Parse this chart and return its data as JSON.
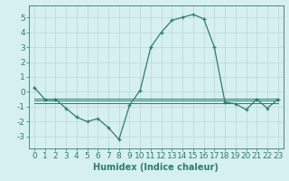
{
  "xlabel": "Humidex (Indice chaleur)",
  "x": [
    0,
    1,
    2,
    3,
    4,
    5,
    6,
    7,
    8,
    9,
    10,
    11,
    12,
    13,
    14,
    15,
    16,
    17,
    18,
    19,
    20,
    21,
    22,
    23
  ],
  "main_line": [
    0.3,
    -0.5,
    -0.5,
    -1.1,
    -1.7,
    -2.0,
    -1.8,
    -2.4,
    -3.2,
    -0.9,
    0.1,
    3.0,
    4.0,
    4.8,
    5.0,
    5.2,
    4.9,
    3.0,
    -0.7,
    -0.8,
    -1.2,
    -0.5,
    -1.1,
    -0.5
  ],
  "flat_line1": [
    -0.45,
    -0.45,
    -0.45,
    -0.45,
    -0.45,
    -0.45,
    -0.45,
    -0.45,
    -0.45,
    -0.45,
    -0.45,
    -0.45,
    -0.45,
    -0.45,
    -0.45,
    -0.45,
    -0.45,
    -0.45,
    -0.45,
    -0.45,
    -0.45,
    -0.45,
    -0.45,
    -0.45
  ],
  "flat_line2": [
    -0.6,
    -0.6,
    -0.6,
    -0.6,
    -0.6,
    -0.6,
    -0.6,
    -0.6,
    -0.6,
    -0.6,
    -0.6,
    -0.6,
    -0.6,
    -0.6,
    -0.6,
    -0.6,
    -0.6,
    -0.6,
    -0.6,
    -0.6,
    -0.6,
    -0.6,
    -0.6,
    -0.6
  ],
  "flat_line3": [
    -0.75,
    -0.75,
    -0.75,
    -0.75,
    -0.75,
    -0.75,
    -0.75,
    -0.75,
    -0.75,
    -0.75,
    -0.75,
    -0.75,
    -0.75,
    -0.75,
    -0.75,
    -0.75,
    -0.75,
    -0.75,
    -0.75,
    -0.75,
    -0.75,
    -0.75,
    -0.75,
    -0.75
  ],
  "line_color": "#2e7d6e",
  "bg_color": "#d6efef",
  "grid_color": "#b8d8d8",
  "ylim": [
    -3.8,
    5.8
  ],
  "yticks": [
    -3,
    -2,
    -1,
    0,
    1,
    2,
    3,
    4,
    5
  ],
  "xlim": [
    -0.5,
    23.5
  ],
  "xlabel_fontsize": 7,
  "tick_fontsize": 6.5
}
